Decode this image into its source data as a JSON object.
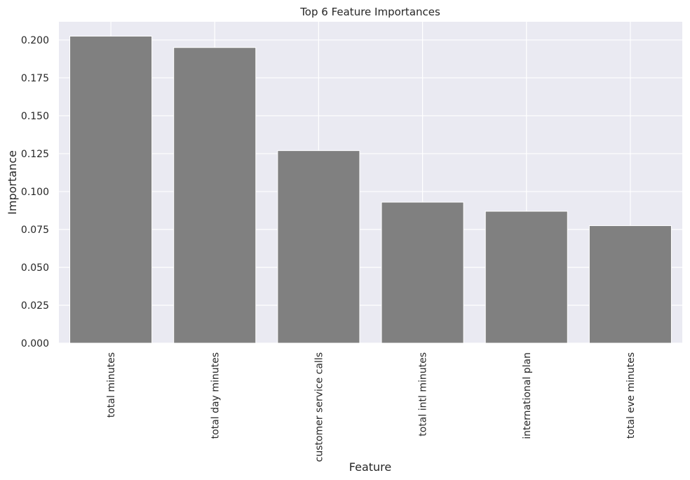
{
  "chart_data": {
    "type": "bar",
    "title": "Top 6 Feature Importances",
    "xlabel": "Feature",
    "ylabel": "Importance",
    "categories": [
      "total minutes",
      "total day minutes",
      "customer service calls",
      "total intl minutes",
      "international plan",
      "total eve minutes"
    ],
    "values": [
      0.2025,
      0.195,
      0.127,
      0.093,
      0.087,
      0.0775
    ],
    "ylim": [
      0,
      0.212
    ],
    "yticks": [
      0.0,
      0.025,
      0.05,
      0.075,
      0.1,
      0.125,
      0.15,
      0.175,
      0.2
    ],
    "ytick_labels": [
      "0.000",
      "0.025",
      "0.050",
      "0.075",
      "0.100",
      "0.125",
      "0.150",
      "0.175",
      "0.200"
    ],
    "grid": true,
    "legend": "none",
    "bar_color": "#808080",
    "background_color": "#eaeaf2",
    "grid_color": "#ffffff"
  }
}
